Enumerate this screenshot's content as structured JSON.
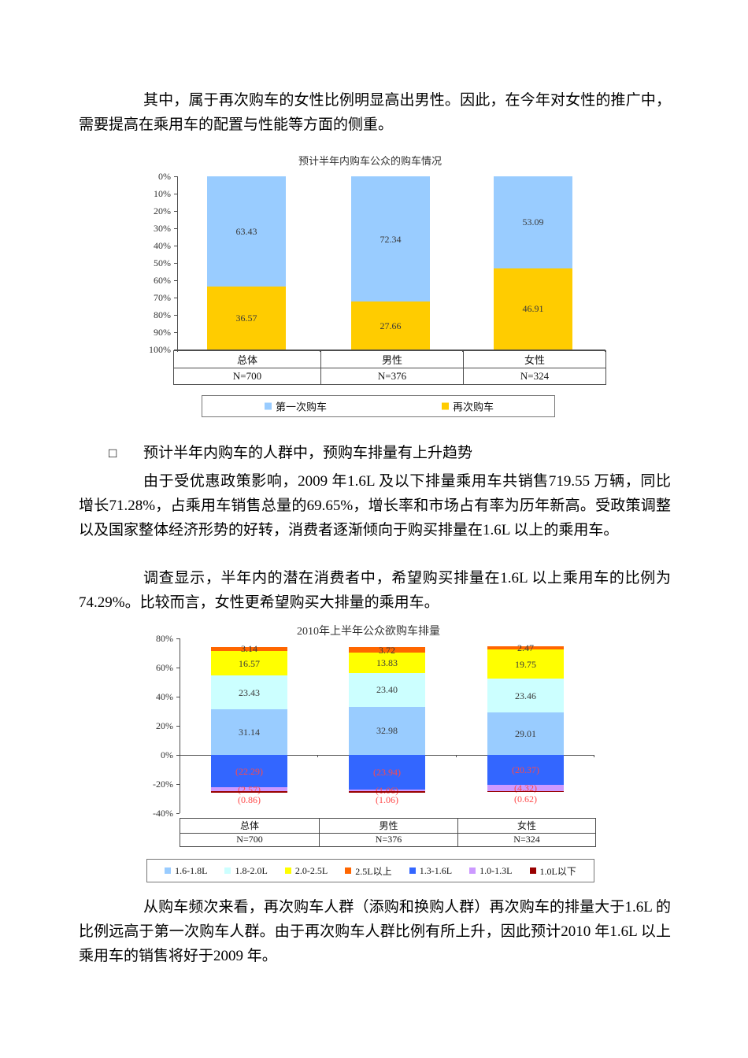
{
  "document": {
    "paragraph1": "其中，属于再次购车的女性比例明显高出男性。因此，在今年对女性的推广中，需要提高在乘用车的配置与性能等方面的侧重。",
    "bullet": {
      "marker": "□",
      "text": "预计半年内购车的人群中，预购车排量有上升趋势"
    },
    "paragraph2": "由于受优惠政策影响，2009 年1.6L 及以下排量乘用车共销售719.55 万辆，同比增长71.28%，占乘用车销售总量的69.65%，增长率和市场占有率为历年新高。受政策调整以及国家整体经济形势的好转，消费者逐渐倾向于购买排量在1.6L 以上的乘用车。",
    "paragraph3": "调查显示，半年内的潜在消费者中，希望购买排量在1.6L 以上乘用车的比例为74.29%。比较而言，女性更希望购买大排量的乘用车。",
    "paragraph4": "从购车频次来看，再次购车人群（添购和换购人群）再次购车的排量大于1.6L 的比例远高于第一次购车人群。由于再次购车人群比例有所上升，因此预计2010 年1.6L 以上乘用车的销售将好于2009 年。"
  },
  "chart_data": [
    {
      "type": "bar",
      "stacked": true,
      "title": "预计半年内购车公众的购车情况",
      "categories": [
        "总体",
        "男性",
        "女性"
      ],
      "sample_sizes": [
        "N=700",
        "N=376",
        "N=324"
      ],
      "y_axis": {
        "min": 0,
        "max": 100,
        "inverted": true,
        "unit": "%",
        "ticks": [
          {
            "v": 0,
            "label": "0%"
          },
          {
            "v": 10,
            "label": "10%"
          },
          {
            "v": 20,
            "label": "20%"
          },
          {
            "v": 30,
            "label": "30%"
          },
          {
            "v": 40,
            "label": "40%"
          },
          {
            "v": 50,
            "label": "50%"
          },
          {
            "v": 60,
            "label": "60%"
          },
          {
            "v": 70,
            "label": "70%"
          },
          {
            "v": 80,
            "label": "80%"
          },
          {
            "v": 90,
            "label": "90%"
          },
          {
            "v": 100,
            "label": "100%"
          }
        ]
      },
      "series": [
        {
          "name": "第一次购车",
          "color": "#99CCFF",
          "values": [
            63.43,
            72.34,
            53.09
          ],
          "labels": [
            "63.43",
            "72.34",
            "53.09"
          ],
          "label_color": "#3a3a3a"
        },
        {
          "name": "再次购车",
          "color": "#FFCC00",
          "values": [
            36.57,
            27.66,
            46.91
          ],
          "labels": [
            "36.57",
            "27.66",
            "46.91"
          ],
          "label_color": "#3a3a3a"
        }
      ],
      "legend_position": "bottom",
      "grid": false
    },
    {
      "type": "bar",
      "stacked": true,
      "title": "2010年上半年公众欲购车排量",
      "categories": [
        "总体",
        "男性",
        "女性"
      ],
      "sample_sizes": [
        "N=700",
        "N=376",
        "N=324"
      ],
      "y_axis": {
        "min": -40,
        "max": 80,
        "unit": "%",
        "ticks": [
          {
            "v": 80,
            "label": "80%"
          },
          {
            "v": 60,
            "label": "60%"
          },
          {
            "v": 40,
            "label": "40%"
          },
          {
            "v": 20,
            "label": "20%"
          },
          {
            "v": 0,
            "label": "0%"
          },
          {
            "v": -20,
            "label": "-20%"
          },
          {
            "v": -40,
            "label": "-40%"
          }
        ]
      },
      "series": [
        {
          "name": "1.6-1.8L",
          "color": "#99CCFF",
          "values": [
            31.14,
            32.98,
            29.01
          ],
          "labels": [
            "31.14",
            "32.98",
            "29.01"
          ],
          "label_color": "#3a3a3a"
        },
        {
          "name": "1.8-2.0L",
          "color": "#CCFFFF",
          "values": [
            23.43,
            23.4,
            23.46
          ],
          "labels": [
            "23.43",
            "23.40",
            "23.46"
          ],
          "label_color": "#3a3a3a"
        },
        {
          "name": "2.0-2.5L",
          "color": "#FFFF00",
          "values": [
            16.57,
            13.83,
            19.75
          ],
          "labels": [
            "16.57",
            "13.83",
            "19.75"
          ],
          "label_color": "#3a3a3a"
        },
        {
          "name": "2.5L以上",
          "color": "#FF6600",
          "values": [
            3.14,
            3.72,
            2.47
          ],
          "labels": [
            "3.14",
            "3.72",
            "2.47"
          ],
          "label_color": "#3a3a3a"
        },
        {
          "name": "1.3-1.6L",
          "color": "#3366FF",
          "values": [
            -22.29,
            -23.94,
            -20.37
          ],
          "labels": [
            "(22.29)",
            "(23.94)",
            "(20.37)"
          ],
          "label_color": "#FF4949"
        },
        {
          "name": "1.0-1.3L",
          "color": "#CC99FF",
          "values": [
            -2.57,
            -1.06,
            -4.32
          ],
          "labels": [
            "(2.57)",
            "(1.06)",
            "(4.32)"
          ],
          "label_color": "#FF4949"
        },
        {
          "name": "1.0L以下",
          "color": "#990000",
          "values": [
            -0.86,
            -1.06,
            -0.62
          ],
          "labels": [
            "(0.86)",
            "(1.06)",
            "(0.62)"
          ],
          "label_color": "#FF4949",
          "label_outside": true
        }
      ],
      "legend_position": "bottom",
      "grid": false
    }
  ]
}
